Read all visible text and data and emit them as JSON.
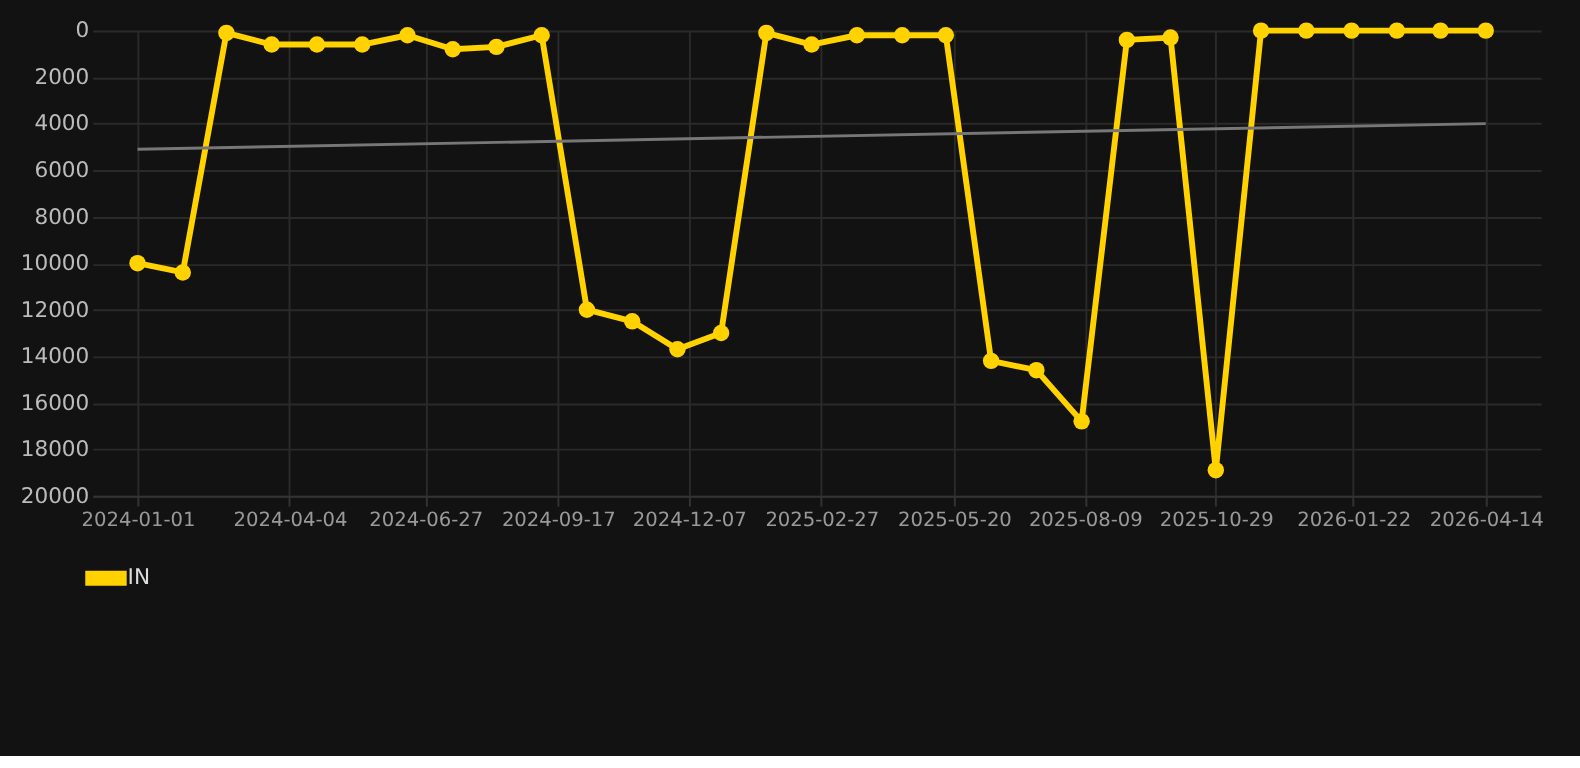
{
  "chart_data": {
    "type": "line",
    "marker": "circle",
    "grid": true,
    "legend": "bottom",
    "ylim": [
      20000,
      0
    ],
    "yticks": [
      0,
      2000,
      4000,
      6000,
      8000,
      10000,
      12000,
      14000,
      16000,
      18000,
      20000
    ],
    "xlim": [
      "2023-12-04",
      "2026-05-18"
    ],
    "xticks": [
      "2024-01-01",
      "2024-04-04",
      "2024-06-27",
      "2024-09-17",
      "2024-12-07",
      "2025-02-27",
      "2025-05-20",
      "2025-08-09",
      "2025-10-29",
      "2026-01-22",
      "2026-04-14"
    ],
    "x": [
      "2024-01-01",
      "2024-01-29",
      "2024-02-25",
      "2024-03-24",
      "2024-04-21",
      "2024-05-19",
      "2024-06-16",
      "2024-07-14",
      "2024-08-10",
      "2024-09-07",
      "2024-10-05",
      "2024-11-02",
      "2024-11-30",
      "2024-12-27",
      "2025-01-24",
      "2025-02-21",
      "2025-03-21",
      "2025-04-18",
      "2025-05-15",
      "2025-06-12",
      "2025-07-10",
      "2025-08-07",
      "2025-09-04",
      "2025-10-01",
      "2025-10-29",
      "2025-11-26",
      "2025-12-24",
      "2026-01-21",
      "2026-02-18",
      "2026-03-17",
      "2026-04-14"
    ],
    "series": [
      {
        "name": "IN",
        "color": "#ffd200",
        "values": [
          10000,
          10400,
          100,
          600,
          600,
          600,
          200,
          800,
          700,
          200,
          12000,
          12500,
          13700,
          13000,
          100,
          600,
          200,
          200,
          200,
          14200,
          14600,
          16800,
          400,
          300,
          18900,
          0,
          0,
          0,
          0,
          0,
          0
        ]
      },
      {
        "type": "line",
        "color": "#777777",
        "marker": "none",
        "x": [
          "2024-01-01",
          "2026-04-14"
        ],
        "values": [
          5100,
          4000
        ]
      }
    ]
  }
}
